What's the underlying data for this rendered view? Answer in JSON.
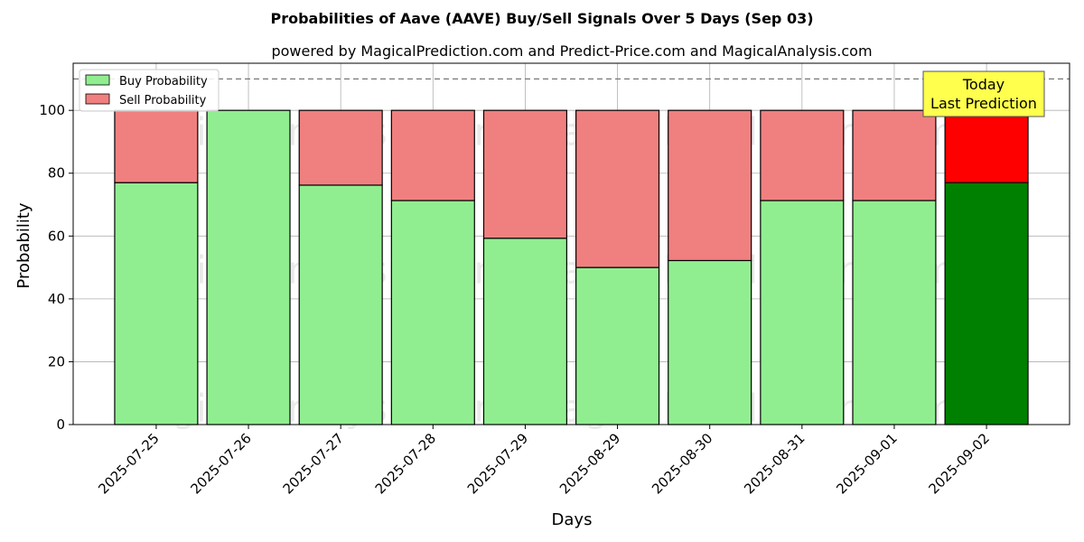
{
  "chart_data": {
    "type": "bar",
    "stacked": true,
    "title": "Probabilities of Aave (AAVE) Buy/Sell Signals Over 5 Days (Sep 03)",
    "subtitle": "powered by MagicalPrediction.com and Predict-Price.com and MagicalAnalysis.com",
    "xlabel": "Days",
    "ylabel": "Probability",
    "ylim": [
      0,
      115
    ],
    "yticks": [
      0,
      20,
      40,
      60,
      80,
      100
    ],
    "reference_line": 110,
    "grid": true,
    "legend_position": "top-left",
    "categories": [
      "2025-07-25",
      "2025-07-26",
      "2025-07-27",
      "2025-07-28",
      "2025-07-29",
      "2025-08-29",
      "2025-08-30",
      "2025-08-31",
      "2025-09-01",
      "2025-09-02"
    ],
    "series": [
      {
        "name": "Buy Probability",
        "color": "#90ee90",
        "highlight_color": "#008000",
        "values": [
          77,
          100,
          76.2,
          71.3,
          59.3,
          50,
          52.2,
          71.3,
          71.3,
          77
        ]
      },
      {
        "name": "Sell Probability",
        "color": "#f08080",
        "highlight_color": "#ff0000",
        "values": [
          23,
          0,
          23.8,
          28.7,
          40.7,
          50,
          47.8,
          28.7,
          28.7,
          23
        ]
      }
    ],
    "highlight_index": 9,
    "annotation": {
      "line1": "Today",
      "line2": "Last Prediction",
      "background": "#ffff4d"
    },
    "watermarks": [
      "MagicalAnalysis.com",
      "MagicalPrediction.com"
    ]
  }
}
